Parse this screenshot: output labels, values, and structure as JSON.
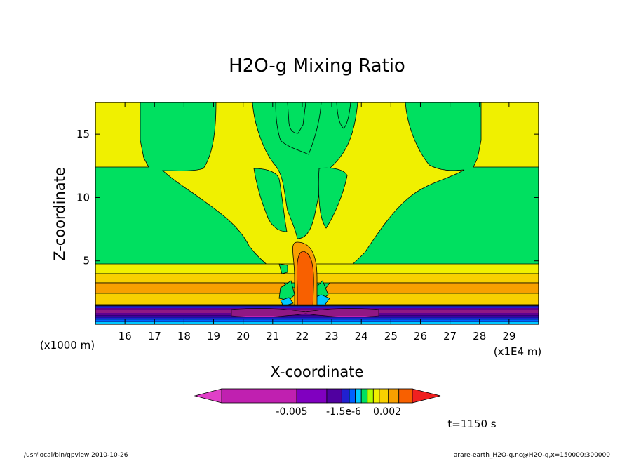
{
  "chart_data": {
    "type": "heatmap",
    "title": "H2O-g Mixing Ratio",
    "xlabel": "X-coordinate",
    "ylabel": "Z-coordinate",
    "x_unit": "(x1E4 m)",
    "y_unit": "(x1000 m)",
    "xlim": [
      15,
      30
    ],
    "ylim": [
      0,
      17.5
    ],
    "x_ticks": [
      16,
      17,
      18,
      19,
      20,
      21,
      22,
      23,
      24,
      25,
      26,
      27,
      28,
      29
    ],
    "y_ticks": [
      5,
      10,
      15
    ],
    "colorbar": {
      "tick_labels": [
        "-0.005",
        "-1.5e-6",
        "0.002"
      ],
      "colors": [
        "#e040c8",
        "#c020b0",
        "#8000c0",
        "#5000a0",
        "#2020d0",
        "#0060ff",
        "#00c8ff",
        "#00e060",
        "#b0ff00",
        "#f0f000",
        "#f8d000",
        "#f8a000",
        "#f86000",
        "#f02020"
      ]
    },
    "time_label": "t=1150 s",
    "fills": {
      "background": "#00e060",
      "high": "#f0f000",
      "band1": "#f8d000",
      "band2": "#f8a000",
      "core": "#f86000",
      "cyan": "#00c8ff",
      "purple": "#8000c0",
      "violet": "#c020b0",
      "blue": "#2020d0"
    }
  },
  "footer": {
    "left": "/usr/local/bin/gpview  2010-10-26",
    "right": "arare-earth_H2O-g.nc@H2O-g,x=150000:300000"
  }
}
